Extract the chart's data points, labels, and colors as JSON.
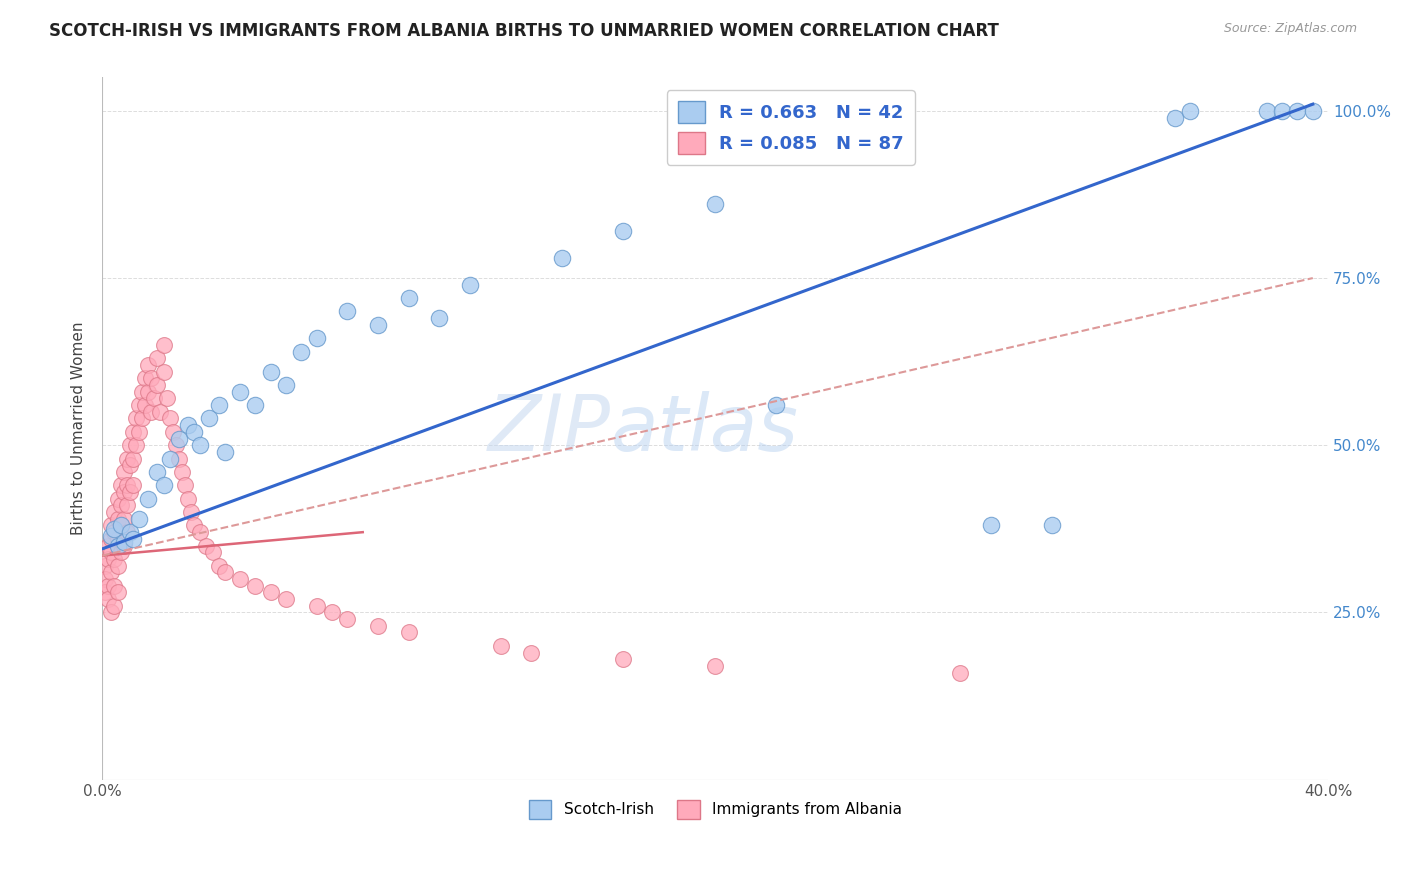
{
  "title": "SCOTCH-IRISH VS IMMIGRANTS FROM ALBANIA BIRTHS TO UNMARRIED WOMEN CORRELATION CHART",
  "source": "Source: ZipAtlas.com",
  "ylabel": "Births to Unmarried Women",
  "watermark_text": "ZIP",
  "watermark_text2": "atlas",
  "xlim": [
    0.0,
    0.4
  ],
  "ylim": [
    0.0,
    1.05
  ],
  "legend_R1": "R = 0.663",
  "legend_N1": "N = 42",
  "legend_R2": "R = 0.085",
  "legend_N2": "N = 87",
  "series1_color": "#aaccf0",
  "series1_edge": "#6699cc",
  "series2_color": "#ffaabb",
  "series2_edge": "#dd7788",
  "line1_color": "#3366cc",
  "line2_solid_color": "#dd6677",
  "line2_dash_color": "#dd9999",
  "background_color": "#ffffff",
  "grid_color": "#dddddd",
  "scotch_irish_x": [
    0.003,
    0.004,
    0.005,
    0.006,
    0.007,
    0.009,
    0.01,
    0.012,
    0.015,
    0.018,
    0.02,
    0.022,
    0.025,
    0.028,
    0.03,
    0.032,
    0.035,
    0.038,
    0.04,
    0.045,
    0.05,
    0.055,
    0.06,
    0.065,
    0.07,
    0.08,
    0.09,
    0.1,
    0.11,
    0.12,
    0.15,
    0.17,
    0.2,
    0.22,
    0.29,
    0.31,
    0.35,
    0.355,
    0.38,
    0.385,
    0.39,
    0.395
  ],
  "scotch_irish_y": [
    0.365,
    0.375,
    0.35,
    0.38,
    0.355,
    0.37,
    0.36,
    0.39,
    0.42,
    0.46,
    0.44,
    0.48,
    0.51,
    0.53,
    0.52,
    0.5,
    0.54,
    0.56,
    0.49,
    0.58,
    0.56,
    0.61,
    0.59,
    0.64,
    0.66,
    0.7,
    0.68,
    0.72,
    0.69,
    0.74,
    0.78,
    0.82,
    0.86,
    0.56,
    0.38,
    0.38,
    0.99,
    1.0,
    1.0,
    1.0,
    1.0,
    1.0
  ],
  "albania_x": [
    0.001,
    0.001,
    0.001,
    0.002,
    0.002,
    0.002,
    0.002,
    0.003,
    0.003,
    0.003,
    0.003,
    0.003,
    0.004,
    0.004,
    0.004,
    0.004,
    0.004,
    0.005,
    0.005,
    0.005,
    0.005,
    0.005,
    0.006,
    0.006,
    0.006,
    0.006,
    0.007,
    0.007,
    0.007,
    0.007,
    0.008,
    0.008,
    0.008,
    0.008,
    0.009,
    0.009,
    0.009,
    0.01,
    0.01,
    0.01,
    0.011,
    0.011,
    0.012,
    0.012,
    0.013,
    0.013,
    0.014,
    0.014,
    0.015,
    0.015,
    0.016,
    0.016,
    0.017,
    0.018,
    0.018,
    0.019,
    0.02,
    0.02,
    0.021,
    0.022,
    0.023,
    0.024,
    0.025,
    0.026,
    0.027,
    0.028,
    0.029,
    0.03,
    0.032,
    0.034,
    0.036,
    0.038,
    0.04,
    0.045,
    0.05,
    0.055,
    0.06,
    0.07,
    0.075,
    0.08,
    0.09,
    0.1,
    0.13,
    0.14,
    0.17,
    0.2,
    0.28
  ],
  "albania_y": [
    0.32,
    0.3,
    0.28,
    0.35,
    0.33,
    0.29,
    0.27,
    0.38,
    0.36,
    0.34,
    0.31,
    0.25,
    0.4,
    0.37,
    0.33,
    0.29,
    0.26,
    0.42,
    0.39,
    0.36,
    0.32,
    0.28,
    0.44,
    0.41,
    0.38,
    0.34,
    0.46,
    0.43,
    0.39,
    0.35,
    0.48,
    0.44,
    0.41,
    0.37,
    0.5,
    0.47,
    0.43,
    0.52,
    0.48,
    0.44,
    0.54,
    0.5,
    0.56,
    0.52,
    0.58,
    0.54,
    0.6,
    0.56,
    0.62,
    0.58,
    0.6,
    0.55,
    0.57,
    0.63,
    0.59,
    0.55,
    0.65,
    0.61,
    0.57,
    0.54,
    0.52,
    0.5,
    0.48,
    0.46,
    0.44,
    0.42,
    0.4,
    0.38,
    0.37,
    0.35,
    0.34,
    0.32,
    0.31,
    0.3,
    0.29,
    0.28,
    0.27,
    0.26,
    0.25,
    0.24,
    0.23,
    0.22,
    0.2,
    0.19,
    0.18,
    0.17,
    0.16
  ],
  "line1_x0": 0.0,
  "line1_y0": 0.345,
  "line1_x1": 0.395,
  "line1_y1": 1.01,
  "line2_solid_x0": 0.0,
  "line2_solid_y0": 0.335,
  "line2_solid_x1": 0.085,
  "line2_solid_y1": 0.37,
  "line2_dash_x0": 0.0,
  "line2_dash_y0": 0.335,
  "line2_dash_x1": 0.395,
  "line2_dash_y1": 0.75
}
